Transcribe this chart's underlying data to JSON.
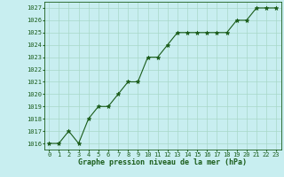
{
  "x": [
    0,
    1,
    2,
    3,
    4,
    5,
    6,
    7,
    8,
    9,
    10,
    11,
    12,
    13,
    14,
    15,
    16,
    17,
    18,
    19,
    20,
    21,
    22,
    23
  ],
  "y": [
    1016,
    1016,
    1017,
    1016,
    1018,
    1019,
    1019,
    1020,
    1021,
    1021,
    1023,
    1023,
    1024,
    1025,
    1025,
    1025,
    1025,
    1025,
    1025,
    1026,
    1026,
    1027,
    1027,
    1027
  ],
  "line_color": "#1a5c1a",
  "marker": "*",
  "marker_color": "#1a5c1a",
  "bg_color": "#c8eef0",
  "grid_color": "#a8d8c8",
  "xlabel": "Graphe pression niveau de la mer (hPa)",
  "xlabel_color": "#1a5c1a",
  "tick_color": "#1a5c1a",
  "ylim_min": 1015.5,
  "ylim_max": 1027.5,
  "xlim_min": -0.5,
  "xlim_max": 23.5,
  "yticks": [
    1016,
    1017,
    1018,
    1019,
    1020,
    1021,
    1022,
    1023,
    1024,
    1025,
    1026,
    1027
  ],
  "xticks": [
    0,
    1,
    2,
    3,
    4,
    5,
    6,
    7,
    8,
    9,
    10,
    11,
    12,
    13,
    14,
    15,
    16,
    17,
    18,
    19,
    20,
    21,
    22,
    23
  ],
  "tick_fontsize": 5,
  "xlabel_fontsize": 6,
  "linewidth": 0.8,
  "markersize": 3.5
}
